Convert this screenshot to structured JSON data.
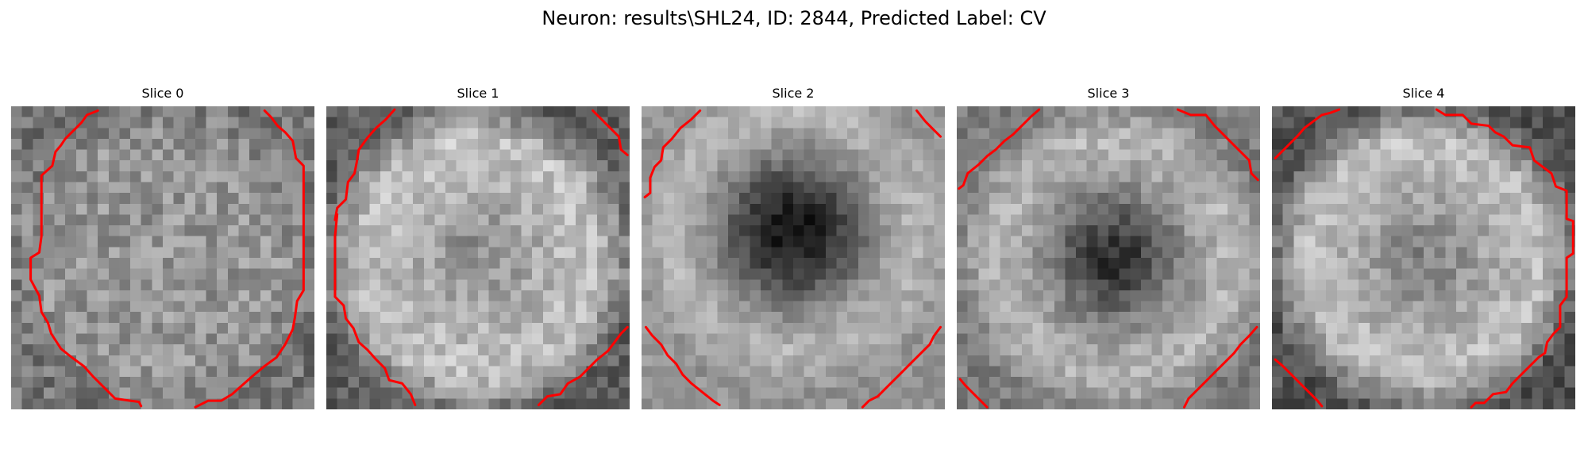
{
  "figure": {
    "title": "Neuron: results\\SHL24, ID: 2844, Predicted Label: CV"
  },
  "slices": [
    {
      "label": "Slice 0"
    },
    {
      "label": "Slice 1"
    },
    {
      "label": "Slice 2"
    },
    {
      "label": "Slice 3"
    },
    {
      "label": "Slice 4"
    }
  ],
  "colors": {
    "contour": "#ff0000",
    "colormap": "gray"
  }
}
